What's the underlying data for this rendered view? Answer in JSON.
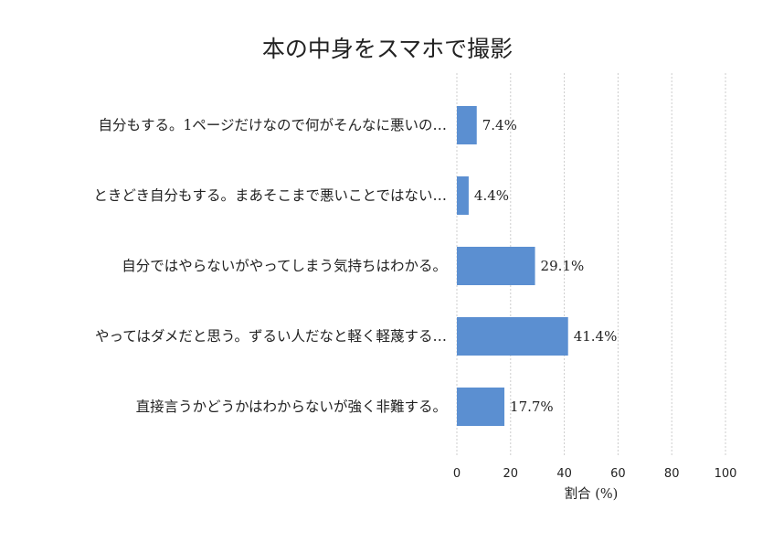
{
  "chart_data": {
    "type": "bar",
    "orientation": "horizontal",
    "title": "本の中身をスマホで撮影",
    "xlabel": "割合 (%)",
    "ylabel": "",
    "xlim": [
      0,
      100
    ],
    "x_ticks": [
      "0",
      "20",
      "40",
      "60",
      "80",
      "100"
    ],
    "grid": true,
    "categories": [
      "自分もする。1ページだけなので何がそんなに悪いの…",
      "ときどき自分もする。まあそこまで悪いことではない…",
      "自分ではやらないがやってしまう気持ちはわかる。",
      "やってはダメだと思う。ずるい人だなと軽く軽蔑する…",
      "直接言うかどうかはわからないが強く非難する。"
    ],
    "values": [
      7.4,
      4.4,
      29.1,
      41.4,
      17.7
    ],
    "value_labels": [
      "7.4%",
      "4.4%",
      "29.1%",
      "41.4%",
      "17.7%"
    ],
    "bar_color": "#5b8fd1"
  }
}
